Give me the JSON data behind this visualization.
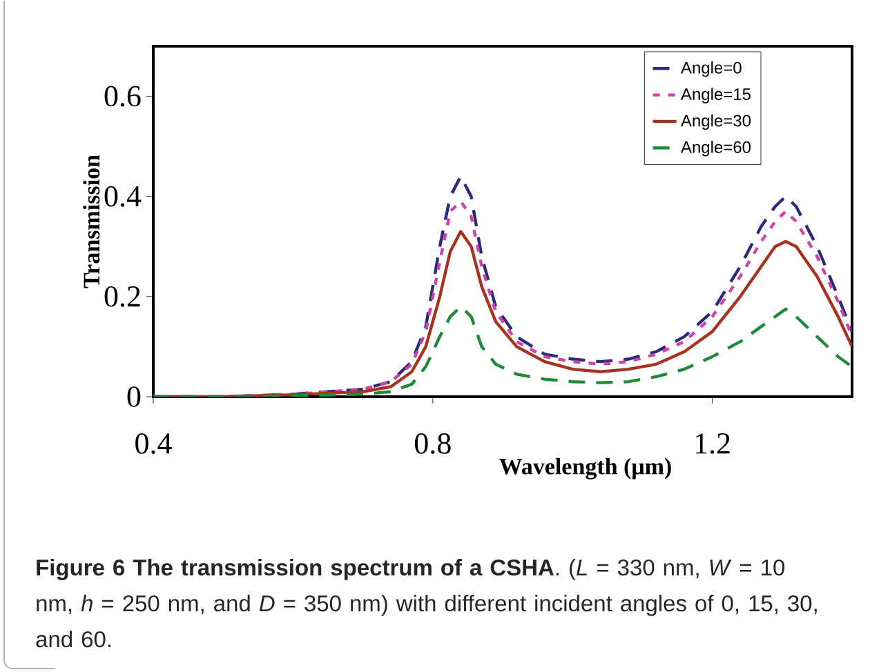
{
  "chart_data": {
    "type": "line",
    "xlabel": "Wavelength (μm)",
    "ylabel": "Transmission",
    "xlim": [
      0.4,
      1.4
    ],
    "ylim": [
      0,
      0.7
    ],
    "xticks": [
      0.4,
      0.8,
      1.2
    ],
    "yticks": [
      0,
      0.2,
      0.4,
      0.6
    ],
    "legend": "top right",
    "grid": false,
    "marker": "none",
    "x": [
      0.4,
      0.5,
      0.6,
      0.7,
      0.74,
      0.77,
      0.79,
      0.81,
      0.825,
      0.84,
      0.855,
      0.87,
      0.89,
      0.92,
      0.96,
      1.0,
      1.04,
      1.08,
      1.12,
      1.16,
      1.2,
      1.24,
      1.27,
      1.29,
      1.305,
      1.32,
      1.35,
      1.38,
      1.4
    ],
    "series": [
      {
        "name": "Angle=0",
        "color": "#2e2a7a",
        "line_style": "dashed",
        "values": [
          0,
          0,
          0.005,
          0.015,
          0.03,
          0.07,
          0.14,
          0.3,
          0.4,
          0.44,
          0.4,
          0.28,
          0.18,
          0.12,
          0.085,
          0.075,
          0.07,
          0.075,
          0.09,
          0.12,
          0.17,
          0.26,
          0.34,
          0.38,
          0.4,
          0.38,
          0.3,
          0.2,
          0.13
        ]
      },
      {
        "name": "Angle=15",
        "color": "#cc44aa",
        "line_style": "dotted",
        "values": [
          0,
          0,
          0.005,
          0.015,
          0.03,
          0.065,
          0.13,
          0.27,
          0.37,
          0.39,
          0.36,
          0.26,
          0.17,
          0.11,
          0.08,
          0.07,
          0.065,
          0.07,
          0.085,
          0.11,
          0.16,
          0.24,
          0.31,
          0.35,
          0.37,
          0.35,
          0.28,
          0.19,
          0.12
        ]
      },
      {
        "name": "Angle=30",
        "color": "#a83220",
        "line_style": "solid",
        "values": [
          0,
          0,
          0.004,
          0.01,
          0.02,
          0.05,
          0.1,
          0.2,
          0.29,
          0.33,
          0.3,
          0.22,
          0.15,
          0.1,
          0.07,
          0.055,
          0.05,
          0.055,
          0.065,
          0.09,
          0.13,
          0.2,
          0.26,
          0.3,
          0.31,
          0.3,
          0.24,
          0.16,
          0.1
        ]
      },
      {
        "name": "Angle=60",
        "color": "#1f8a3a",
        "line_style": "dashed",
        "values": [
          0,
          0,
          0.002,
          0.005,
          0.01,
          0.025,
          0.06,
          0.12,
          0.16,
          0.18,
          0.16,
          0.1,
          0.065,
          0.045,
          0.035,
          0.03,
          0.028,
          0.03,
          0.04,
          0.055,
          0.08,
          0.11,
          0.14,
          0.16,
          0.175,
          0.16,
          0.12,
          0.08,
          0.06
        ]
      }
    ],
    "annotations": [
      "**Figure 6 The transmission spectrum of a CSHA**. (*L* = 330 nm, *W* = 10 nm, *h* = 250 nm, and *D* = 350 nm) with different incident angles of 0, 15, 30, and 60."
    ]
  }
}
